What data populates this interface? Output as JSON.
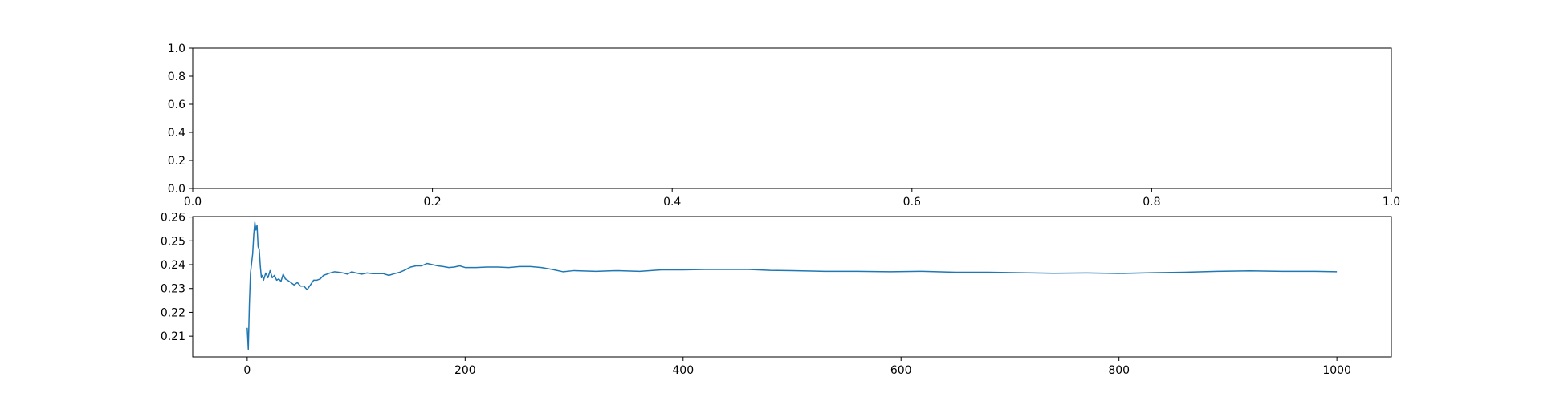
{
  "chart_data": [
    {
      "type": "line",
      "title": "",
      "xlabel": "",
      "ylabel": "",
      "xlim": [
        0.0,
        1.0
      ],
      "ylim": [
        0.0,
        1.0
      ],
      "x_ticks": [
        "0.0",
        "0.2",
        "0.4",
        "0.6",
        "0.8",
        "1.0"
      ],
      "y_ticks": [
        "0.0",
        "0.2",
        "0.4",
        "0.6",
        "0.8",
        "1.0"
      ],
      "grid": false,
      "series": []
    },
    {
      "type": "line",
      "title": "",
      "xlabel": "",
      "ylabel": "",
      "xlim": [
        -50,
        1050
      ],
      "ylim": [
        0.2013,
        0.2602
      ],
      "x_ticks": [
        "0",
        "200",
        "400",
        "600",
        "800",
        "1000"
      ],
      "y_ticks": [
        "0.21",
        "0.22",
        "0.23",
        "0.24",
        "0.25",
        "0.26"
      ],
      "grid": false,
      "line_color": "#1f77b4",
      "series": [
        {
          "x": [
            0,
            1,
            2,
            3,
            5,
            6,
            7,
            8,
            9,
            10,
            11,
            12,
            13,
            14,
            15,
            17,
            19,
            21,
            23,
            25,
            27,
            29,
            31,
            33,
            35,
            37,
            40,
            43,
            46,
            49,
            52,
            55,
            58,
            61,
            64,
            67,
            70,
            73,
            76,
            80,
            84,
            88,
            92,
            96,
            100,
            105,
            110,
            115,
            120,
            125,
            130,
            135,
            140,
            145,
            150,
            155,
            160,
            165,
            170,
            175,
            180,
            185,
            190,
            195,
            200,
            210,
            220,
            230,
            240,
            250,
            260,
            270,
            280,
            290,
            300,
            320,
            340,
            360,
            380,
            400,
            420,
            440,
            460,
            480,
            500,
            530,
            560,
            590,
            620,
            650,
            680,
            710,
            740,
            770,
            800,
            830,
            860,
            890,
            920,
            950,
            980,
            1000
          ],
          "y": [
            0.2135,
            0.2045,
            0.2235,
            0.2365,
            0.2445,
            0.2525,
            0.2578,
            0.2545,
            0.2565,
            0.2475,
            0.2465,
            0.2395,
            0.2345,
            0.2355,
            0.2335,
            0.2365,
            0.2345,
            0.2375,
            0.2345,
            0.2355,
            0.2335,
            0.234,
            0.233,
            0.236,
            0.234,
            0.2335,
            0.2325,
            0.2315,
            0.2325,
            0.231,
            0.231,
            0.2295,
            0.2315,
            0.2335,
            0.2335,
            0.234,
            0.2355,
            0.236,
            0.2365,
            0.237,
            0.2368,
            0.2365,
            0.236,
            0.237,
            0.2365,
            0.236,
            0.2365,
            0.2362,
            0.2362,
            0.2362,
            0.2355,
            0.2362,
            0.2368,
            0.2378,
            0.239,
            0.2395,
            0.2395,
            0.2405,
            0.24,
            0.2395,
            0.2392,
            0.2388,
            0.239,
            0.2395,
            0.2388,
            0.2388,
            0.239,
            0.239,
            0.2388,
            0.2392,
            0.2392,
            0.2388,
            0.238,
            0.237,
            0.2375,
            0.2372,
            0.2375,
            0.2372,
            0.2378,
            0.2378,
            0.238,
            0.238,
            0.238,
            0.2376,
            0.2375,
            0.2372,
            0.2372,
            0.237,
            0.2372,
            0.2368,
            0.2368,
            0.2366,
            0.2364,
            0.2365,
            0.2363,
            0.2366,
            0.2368,
            0.2372,
            0.2374,
            0.2372,
            0.2372,
            0.237
          ]
        }
      ]
    }
  ]
}
